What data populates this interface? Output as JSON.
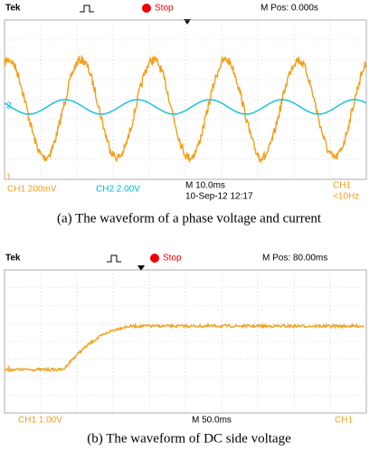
{
  "panels": [
    {
      "header": {
        "brand": "Tek",
        "state": "Stop",
        "position": "M Pos: 0.000s"
      },
      "markers": {
        "ch1": "1",
        "ch2": "2"
      },
      "footer": {
        "ch1_scale": "CH1  200mV",
        "ch2_scale": "CH2  2.00V",
        "time_scale": "M 10.0ms",
        "timestamp": "10-Sep-12 12:17",
        "trigger_channel": "CH1",
        "trigger_freq": "<10Hz"
      },
      "caption": "(a) The waveform of a phase voltage and current"
    },
    {
      "header": {
        "brand": "Tek",
        "state": "Stop",
        "position": "M Pos: 80.00ms"
      },
      "markers": {
        "ch1": "1"
      },
      "footer": {
        "ch1_scale": "CH1  1.00V",
        "time_scale": "M 50.0ms",
        "trigger_channel": "CH1"
      },
      "caption": "(b) The waveform of DC side voltage"
    }
  ]
}
